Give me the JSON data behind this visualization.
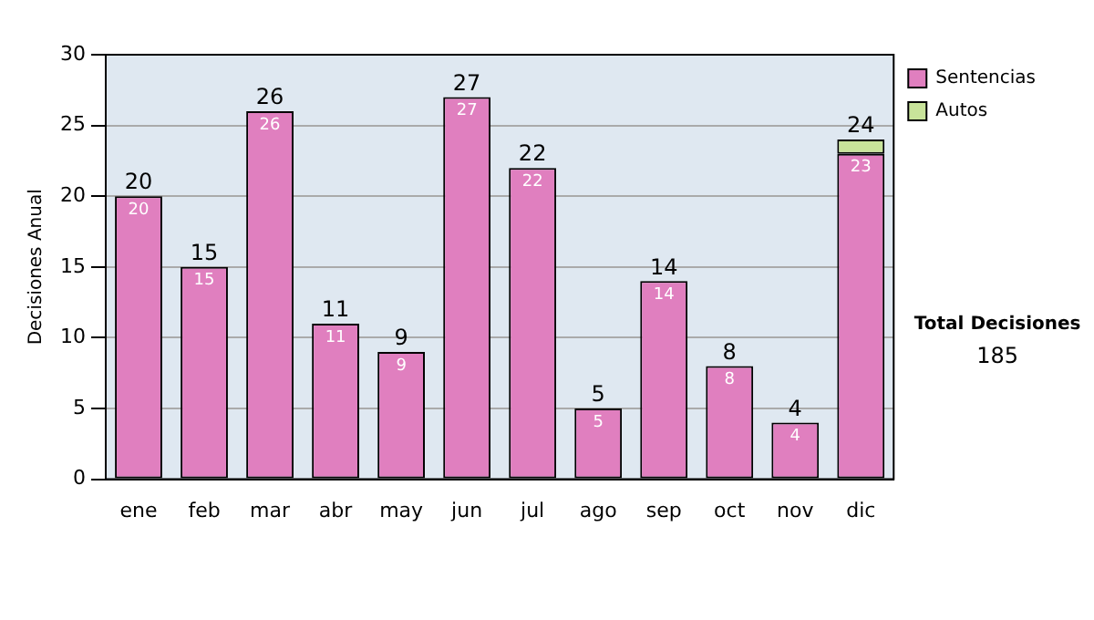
{
  "chart_data": {
    "type": "bar",
    "stacked": true,
    "ylabel": "Decisiones Anual",
    "categories": [
      "ene",
      "feb",
      "mar",
      "abr",
      "may",
      "jun",
      "jul",
      "ago",
      "sep",
      "oct",
      "nov",
      "dic"
    ],
    "series": [
      {
        "name": "Sentencias",
        "color": "#e07fbf",
        "values": [
          20,
          15,
          26,
          11,
          9,
          27,
          22,
          5,
          14,
          8,
          4,
          23
        ],
        "value_labels": [
          "20",
          "15",
          "26",
          "11",
          "9",
          "27",
          "22",
          "5",
          "14",
          "8",
          "4",
          "23"
        ]
      },
      {
        "name": "Autos",
        "color": "#c8e39a",
        "values": [
          null,
          null,
          null,
          null,
          null,
          null,
          null,
          null,
          null,
          null,
          null,
          1
        ]
      }
    ],
    "totals": [
      "20",
      "15",
      "26",
      "11",
      "9",
      "27",
      "22",
      "5",
      "14",
      "8",
      "4",
      "24"
    ],
    "ylim": [
      0,
      30
    ],
    "yticks": [
      0,
      5,
      10,
      15,
      20,
      25,
      30
    ],
    "grid": "y",
    "legend": "right",
    "annotations": [
      "Total Decisiones",
      "185"
    ]
  }
}
